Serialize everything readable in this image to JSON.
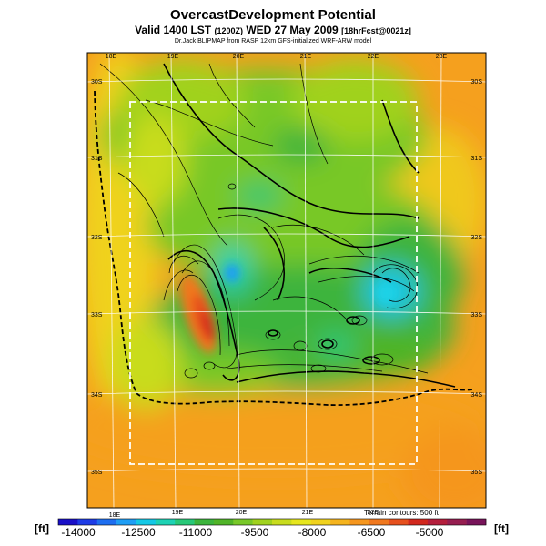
{
  "title": {
    "line1": "OvercastDevelopment Potential",
    "line2_main": "Valid 1400 LST",
    "line2_small1": "(1200Z)",
    "line2_date": "WED 27 May 2009",
    "line2_small2": "[18hrFcst@0021z]",
    "line3": "Dr.Jack BLIPMAP from RASP 12km GFS-initialized WRF-ARW model"
  },
  "map": {
    "top_lon_labels": [
      "18E",
      "19E",
      "20E",
      "21E",
      "22E",
      "23E"
    ],
    "bottom_lon_labels": [
      "18E",
      "19E",
      "20E",
      "21E",
      "22E"
    ],
    "left_lat_labels": [
      "30S",
      "31S",
      "32S",
      "33S",
      "34S",
      "35S"
    ],
    "right_lat_labels": [
      "30S",
      "31S",
      "32S",
      "33S",
      "34S",
      "35S"
    ],
    "terrain_note": "Terrain contours: 500 ft"
  },
  "colorbar": {
    "unit_left": "[ft]",
    "unit_right": "[ft]",
    "tick_labels": [
      "-14000",
      "-12500",
      "-11000",
      "-9500",
      "-8000",
      "-6500",
      "-5000"
    ],
    "colors": [
      "#1a10c8",
      "#1e3ce6",
      "#1e6ef0",
      "#1e9ef5",
      "#14c8e6",
      "#1ed2b4",
      "#28c878",
      "#3cb43c",
      "#50b428",
      "#78c828",
      "#a0d21e",
      "#c8dc1e",
      "#e6e61e",
      "#f0d21e",
      "#f5b41e",
      "#f5961e",
      "#f0781e",
      "#e6501e",
      "#d2281e",
      "#b41e3c",
      "#961e50",
      "#78145a"
    ]
  }
}
